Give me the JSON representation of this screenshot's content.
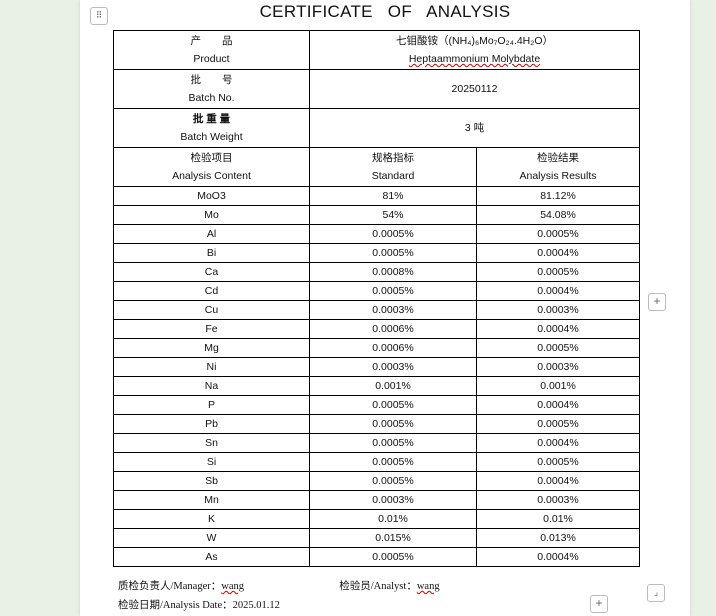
{
  "title": "CERTIFICATE OF ANALYSIS",
  "product": {
    "label_cn": "产　　品",
    "label_en": "Product",
    "value_cn": "七钼酸铵（(NH₄)₆Mo₇O₂₄.4H₂O）",
    "value_en": "Heptaammonium Molybdate"
  },
  "batch_no": {
    "label_cn": "批　　号",
    "label_en": "Batch No.",
    "value": "20250112"
  },
  "batch_weight": {
    "label_cn": "批 重 量",
    "label_en": "Batch Weight",
    "value": "3 吨"
  },
  "columns": [
    {
      "cn": "检验项目",
      "en": "Analysis Content"
    },
    {
      "cn": "规格指标",
      "en": "Standard"
    },
    {
      "cn": "检验结果",
      "en": "Analysis Results"
    }
  ],
  "rows": [
    [
      "MoO3",
      "81%",
      "81.12%"
    ],
    [
      "Mo",
      "54%",
      "54.08%"
    ],
    [
      "Al",
      "0.0005%",
      "0.0005%"
    ],
    [
      "Bi",
      "0.0005%",
      "0.0004%"
    ],
    [
      "Ca",
      "0.0008%",
      "0.0005%"
    ],
    [
      "Cd",
      "0.0005%",
      "0.0004%"
    ],
    [
      "Cu",
      "0.0003%",
      "0.0003%"
    ],
    [
      "Fe",
      "0.0006%",
      "0.0004%"
    ],
    [
      "Mg",
      "0.0006%",
      "0.0005%"
    ],
    [
      "Ni",
      "0.0003%",
      "0.0003%"
    ],
    [
      "Na",
      "0.001%",
      "0.001%"
    ],
    [
      "P",
      "0.0005%",
      "0.0004%"
    ],
    [
      "Pb",
      "0.0005%",
      "0.0005%"
    ],
    [
      "Sn",
      "0.0005%",
      "0.0004%"
    ],
    [
      "Si",
      "0.0005%",
      "0.0005%"
    ],
    [
      "Sb",
      "0.0005%",
      "0.0004%"
    ],
    [
      "Mn",
      "0.0003%",
      "0.0003%"
    ],
    [
      "K",
      "0.01%",
      "0.01%"
    ],
    [
      "W",
      "0.015%",
      "0.013%"
    ],
    [
      "As",
      "0.0005%",
      "0.0004%"
    ]
  ],
  "footer": {
    "manager_label": "质检负责人/Manager：",
    "manager": "wang",
    "analyst_label": "检验员/Analyst：",
    "analyst": "wang",
    "date_label": "检验日期/Analysis Date：",
    "date": "2025.01.12"
  },
  "icons": {
    "move": "move-handle-icon",
    "add": "plus-icon",
    "resize": "resize-corner-icon"
  }
}
